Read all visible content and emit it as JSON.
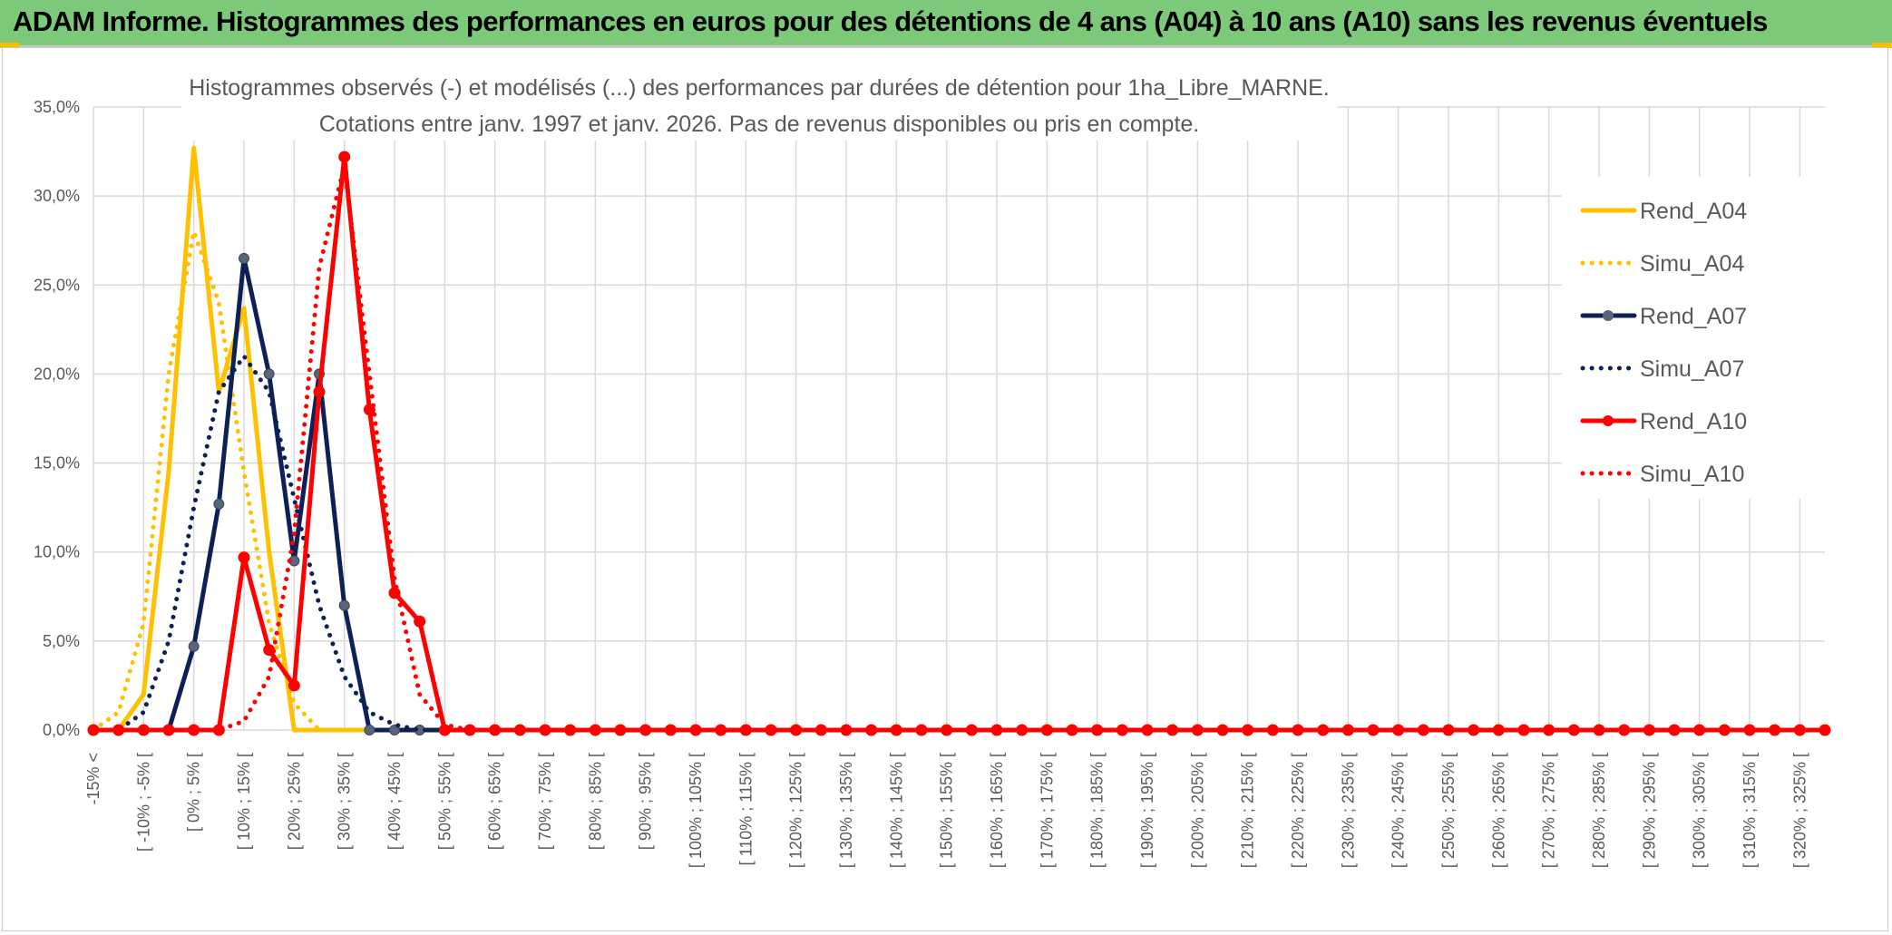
{
  "banner": {
    "title": "ADAM Informe. Histogrammes des performances en euros pour des détentions de 4 ans (A04) à 10 ans (A10) sans les revenus éventuels",
    "background": "#7dc97a",
    "accent": "#f5c000"
  },
  "chart_data": {
    "type": "line",
    "title": "Histogrammes observés (-) et modélisés (...) des performances par durées de détention pour 1ha_Libre_MARNE.",
    "subtitle": "Cotations entre janv. 1997 et janv. 2026. Pas de revenus disponibles ou pris en compte.",
    "xlabel": "",
    "ylabel": "",
    "ylim": [
      0,
      0.35
    ],
    "yticks": [
      "0,0%",
      "5,0%",
      "10,0%",
      "15,0%",
      "20,0%",
      "25,0%",
      "30,0%",
      "35,0%"
    ],
    "grid": true,
    "legend_position": "right",
    "categories": [
      "-15% <",
      "[ -15% ; -10% [",
      "[ -10% ; -5% [",
      "[ -5% ; 0% [",
      "[ 0% ; 5% [",
      "[ 5% ; 10% [",
      "[ 10% ; 15% [",
      "[ 15% ; 20% [",
      "[ 20% ; 25% [",
      "[ 25% ; 30% [",
      "[ 30% ; 35% [",
      "[ 35% ; 40% [",
      "[ 40% ; 45% [",
      "[ 45% ; 50% [",
      "[ 50% ; 55% [",
      "[ 55% ; 60% [",
      "[ 60% ; 65% [",
      "[ 65% ; 70% [",
      "[ 70% ; 75% [",
      "[ 75% ; 80% [",
      "[ 80% ; 85% [",
      "[ 85% ; 90% [",
      "[ 90% ; 95% [",
      "[ 95% ; 100% [",
      "[ 100% ; 105% [",
      "[ 105% ; 110% [",
      "[ 110% ; 115% [",
      "[ 115% ; 120% [",
      "[ 120% ; 125% [",
      "[ 125% ; 130% [",
      "[ 130% ; 135% [",
      "[ 135% ; 140% [",
      "[ 140% ; 145% [",
      "[ 145% ; 150% [",
      "[ 150% ; 155% [",
      "[ 155% ; 160% [",
      "[ 160% ; 165% [",
      "[ 165% ; 170% [",
      "[ 170% ; 175% [",
      "[ 175% ; 180% [",
      "[ 180% ; 185% [",
      "[ 185% ; 190% [",
      "[ 190% ; 195% [",
      "[ 195% ; 200% [",
      "[ 200% ; 205% [",
      "[ 205% ; 210% [",
      "[ 210% ; 215% [",
      "[ 215% ; 220% [",
      "[ 220% ; 225% [",
      "[ 225% ; 230% [",
      "[ 230% ; 235% [",
      "[ 235% ; 240% [",
      "[ 240% ; 245% [",
      "[ 245% ; 250% [",
      "[ 250% ; 255% [",
      "[ 255% ; 260% [",
      "[ 260% ; 265% [",
      "[ 265% ; 270% [",
      "[ 270% ; 275% [",
      "[ 275% ; 280% [",
      "[ 280% ; 285% [",
      "[ 285% ; 290% [",
      "[ 290% ; 295% [",
      "[ 295% ; 300% [",
      "[ 300% ; 305% [",
      "[ 305% ; 310% [",
      "[ 310% ; 315% [",
      "[ 315% ; 320% [",
      "[ 320% ; 325% [",
      "[ 325% ; 330% ["
    ],
    "shown_tick_labels": [
      "-15% <",
      "[ -10% ; -5% [",
      "[ 0% ; 5% [",
      "[ 10% ; 15% [",
      "[ 20% ; 25% [",
      "[ 30% ; 35% [",
      "[ 40% ; 45% [",
      "[ 50% ; 55% [",
      "[ 60% ; 65% [",
      "[ 70% ; 75% [",
      "[ 80% ; 85% [",
      "[ 90% ; 95% [",
      "[ 100% ; 105% [",
      "[ 110% ; 115% [",
      "[ 120% ; 125% [",
      "[ 130% ; 135% [",
      "[ 140% ; 145% [",
      "[ 150% ; 155% [",
      "[ 160% ; 165% [",
      "[ 170% ; 175% [",
      "[ 180% ; 185% [",
      "[ 190% ; 195% [",
      "[ 200% ; 205% [",
      "[ 210% ; 215% [",
      "[ 220% ; 225% [",
      "[ 230% ; 235% [",
      "[ 240% ; 245% [",
      "[ 250% ; 255% [",
      "[ 260% ; 265% [",
      "[ 270% ; 275% [",
      "[ 280% ; 285% [",
      "[ 290% ; 295% [",
      "[ 300% ; 305% [",
      "[ 310% ; 315% [",
      "[ 320% ; 325% ["
    ],
    "series": [
      {
        "name": "Rend_A04",
        "style": "solid",
        "markers": false,
        "color": "#ffc000",
        "values": [
          0,
          0,
          0.02,
          0.145,
          0.327,
          0.19,
          0.237,
          0.1,
          0,
          0,
          0,
          0,
          0,
          0,
          0,
          0,
          0,
          0,
          0,
          0,
          0,
          0,
          0,
          0,
          0,
          0,
          0,
          0,
          0,
          0,
          0,
          0,
          0,
          0,
          0,
          0,
          0,
          0,
          0,
          0,
          0,
          0,
          0,
          0,
          0,
          0,
          0,
          0,
          0,
          0,
          0,
          0,
          0,
          0,
          0,
          0,
          0,
          0,
          0,
          0,
          0,
          0,
          0,
          0,
          0,
          0,
          0,
          0,
          0,
          0
        ]
      },
      {
        "name": "Simu_A04",
        "style": "dotted",
        "markers": false,
        "color": "#ffc000",
        "values": [
          0,
          0.01,
          0.06,
          0.2,
          0.28,
          0.24,
          0.145,
          0.06,
          0.015,
          0,
          0,
          0,
          0,
          0,
          0,
          0,
          0,
          0,
          0,
          0,
          0,
          0,
          0,
          0,
          0,
          0,
          0,
          0,
          0,
          0,
          0,
          0,
          0,
          0,
          0,
          0,
          0,
          0,
          0,
          0,
          0,
          0,
          0,
          0,
          0,
          0,
          0,
          0,
          0,
          0,
          0,
          0,
          0,
          0,
          0,
          0,
          0,
          0,
          0,
          0,
          0,
          0,
          0,
          0,
          0,
          0,
          0,
          0,
          0,
          0
        ]
      },
      {
        "name": "Rend_A07",
        "style": "solid",
        "markers": true,
        "color": "#0e2157",
        "values": [
          0,
          0,
          0,
          0,
          0.047,
          0.127,
          0.265,
          0.2,
          0.095,
          0.2,
          0.07,
          0,
          0,
          0,
          0,
          0,
          0,
          0,
          0,
          0,
          0,
          0,
          0,
          0,
          0,
          0,
          0,
          0,
          0,
          0,
          0,
          0,
          0,
          0,
          0,
          0,
          0,
          0,
          0,
          0,
          0,
          0,
          0,
          0,
          0,
          0,
          0,
          0,
          0,
          0,
          0,
          0,
          0,
          0,
          0,
          0,
          0,
          0,
          0,
          0,
          0,
          0,
          0,
          0,
          0,
          0,
          0,
          0,
          0,
          0
        ]
      },
      {
        "name": "Simu_A07",
        "style": "dotted",
        "markers": false,
        "color": "#0e2157",
        "values": [
          0,
          0,
          0.01,
          0.05,
          0.125,
          0.19,
          0.21,
          0.19,
          0.13,
          0.07,
          0.03,
          0.01,
          0.003,
          0,
          0,
          0,
          0,
          0,
          0,
          0,
          0,
          0,
          0,
          0,
          0,
          0,
          0,
          0,
          0,
          0,
          0,
          0,
          0,
          0,
          0,
          0,
          0,
          0,
          0,
          0,
          0,
          0,
          0,
          0,
          0,
          0,
          0,
          0,
          0,
          0,
          0,
          0,
          0,
          0,
          0,
          0,
          0,
          0,
          0,
          0,
          0,
          0,
          0,
          0,
          0,
          0,
          0,
          0,
          0,
          0
        ]
      },
      {
        "name": "Rend_A10",
        "style": "solid",
        "markers": true,
        "color": "#ff0000",
        "values": [
          0,
          0,
          0,
          0,
          0,
          0,
          0.097,
          0.045,
          0.025,
          0.19,
          0.322,
          0.18,
          0.077,
          0.061,
          0,
          0,
          0,
          0,
          0,
          0,
          0,
          0,
          0,
          0,
          0,
          0,
          0,
          0,
          0,
          0,
          0,
          0,
          0,
          0,
          0,
          0,
          0,
          0,
          0,
          0,
          0,
          0,
          0,
          0,
          0,
          0,
          0,
          0,
          0,
          0,
          0,
          0,
          0,
          0,
          0,
          0,
          0,
          0,
          0,
          0,
          0,
          0,
          0,
          0,
          0,
          0,
          0,
          0,
          0,
          0
        ]
      },
      {
        "name": "Simu_A10",
        "style": "dotted",
        "markers": false,
        "color": "#ff0000",
        "values": [
          0,
          0,
          0,
          0,
          0,
          0,
          0.005,
          0.03,
          0.11,
          0.26,
          0.317,
          0.2,
          0.085,
          0.02,
          0.003,
          0,
          0,
          0,
          0,
          0,
          0,
          0,
          0,
          0,
          0,
          0,
          0,
          0,
          0,
          0,
          0,
          0,
          0,
          0,
          0,
          0,
          0,
          0,
          0,
          0,
          0,
          0,
          0,
          0,
          0,
          0,
          0,
          0,
          0,
          0,
          0,
          0,
          0,
          0,
          0,
          0,
          0,
          0,
          0,
          0,
          0,
          0,
          0,
          0,
          0,
          0,
          0,
          0,
          0,
          0
        ]
      }
    ]
  }
}
